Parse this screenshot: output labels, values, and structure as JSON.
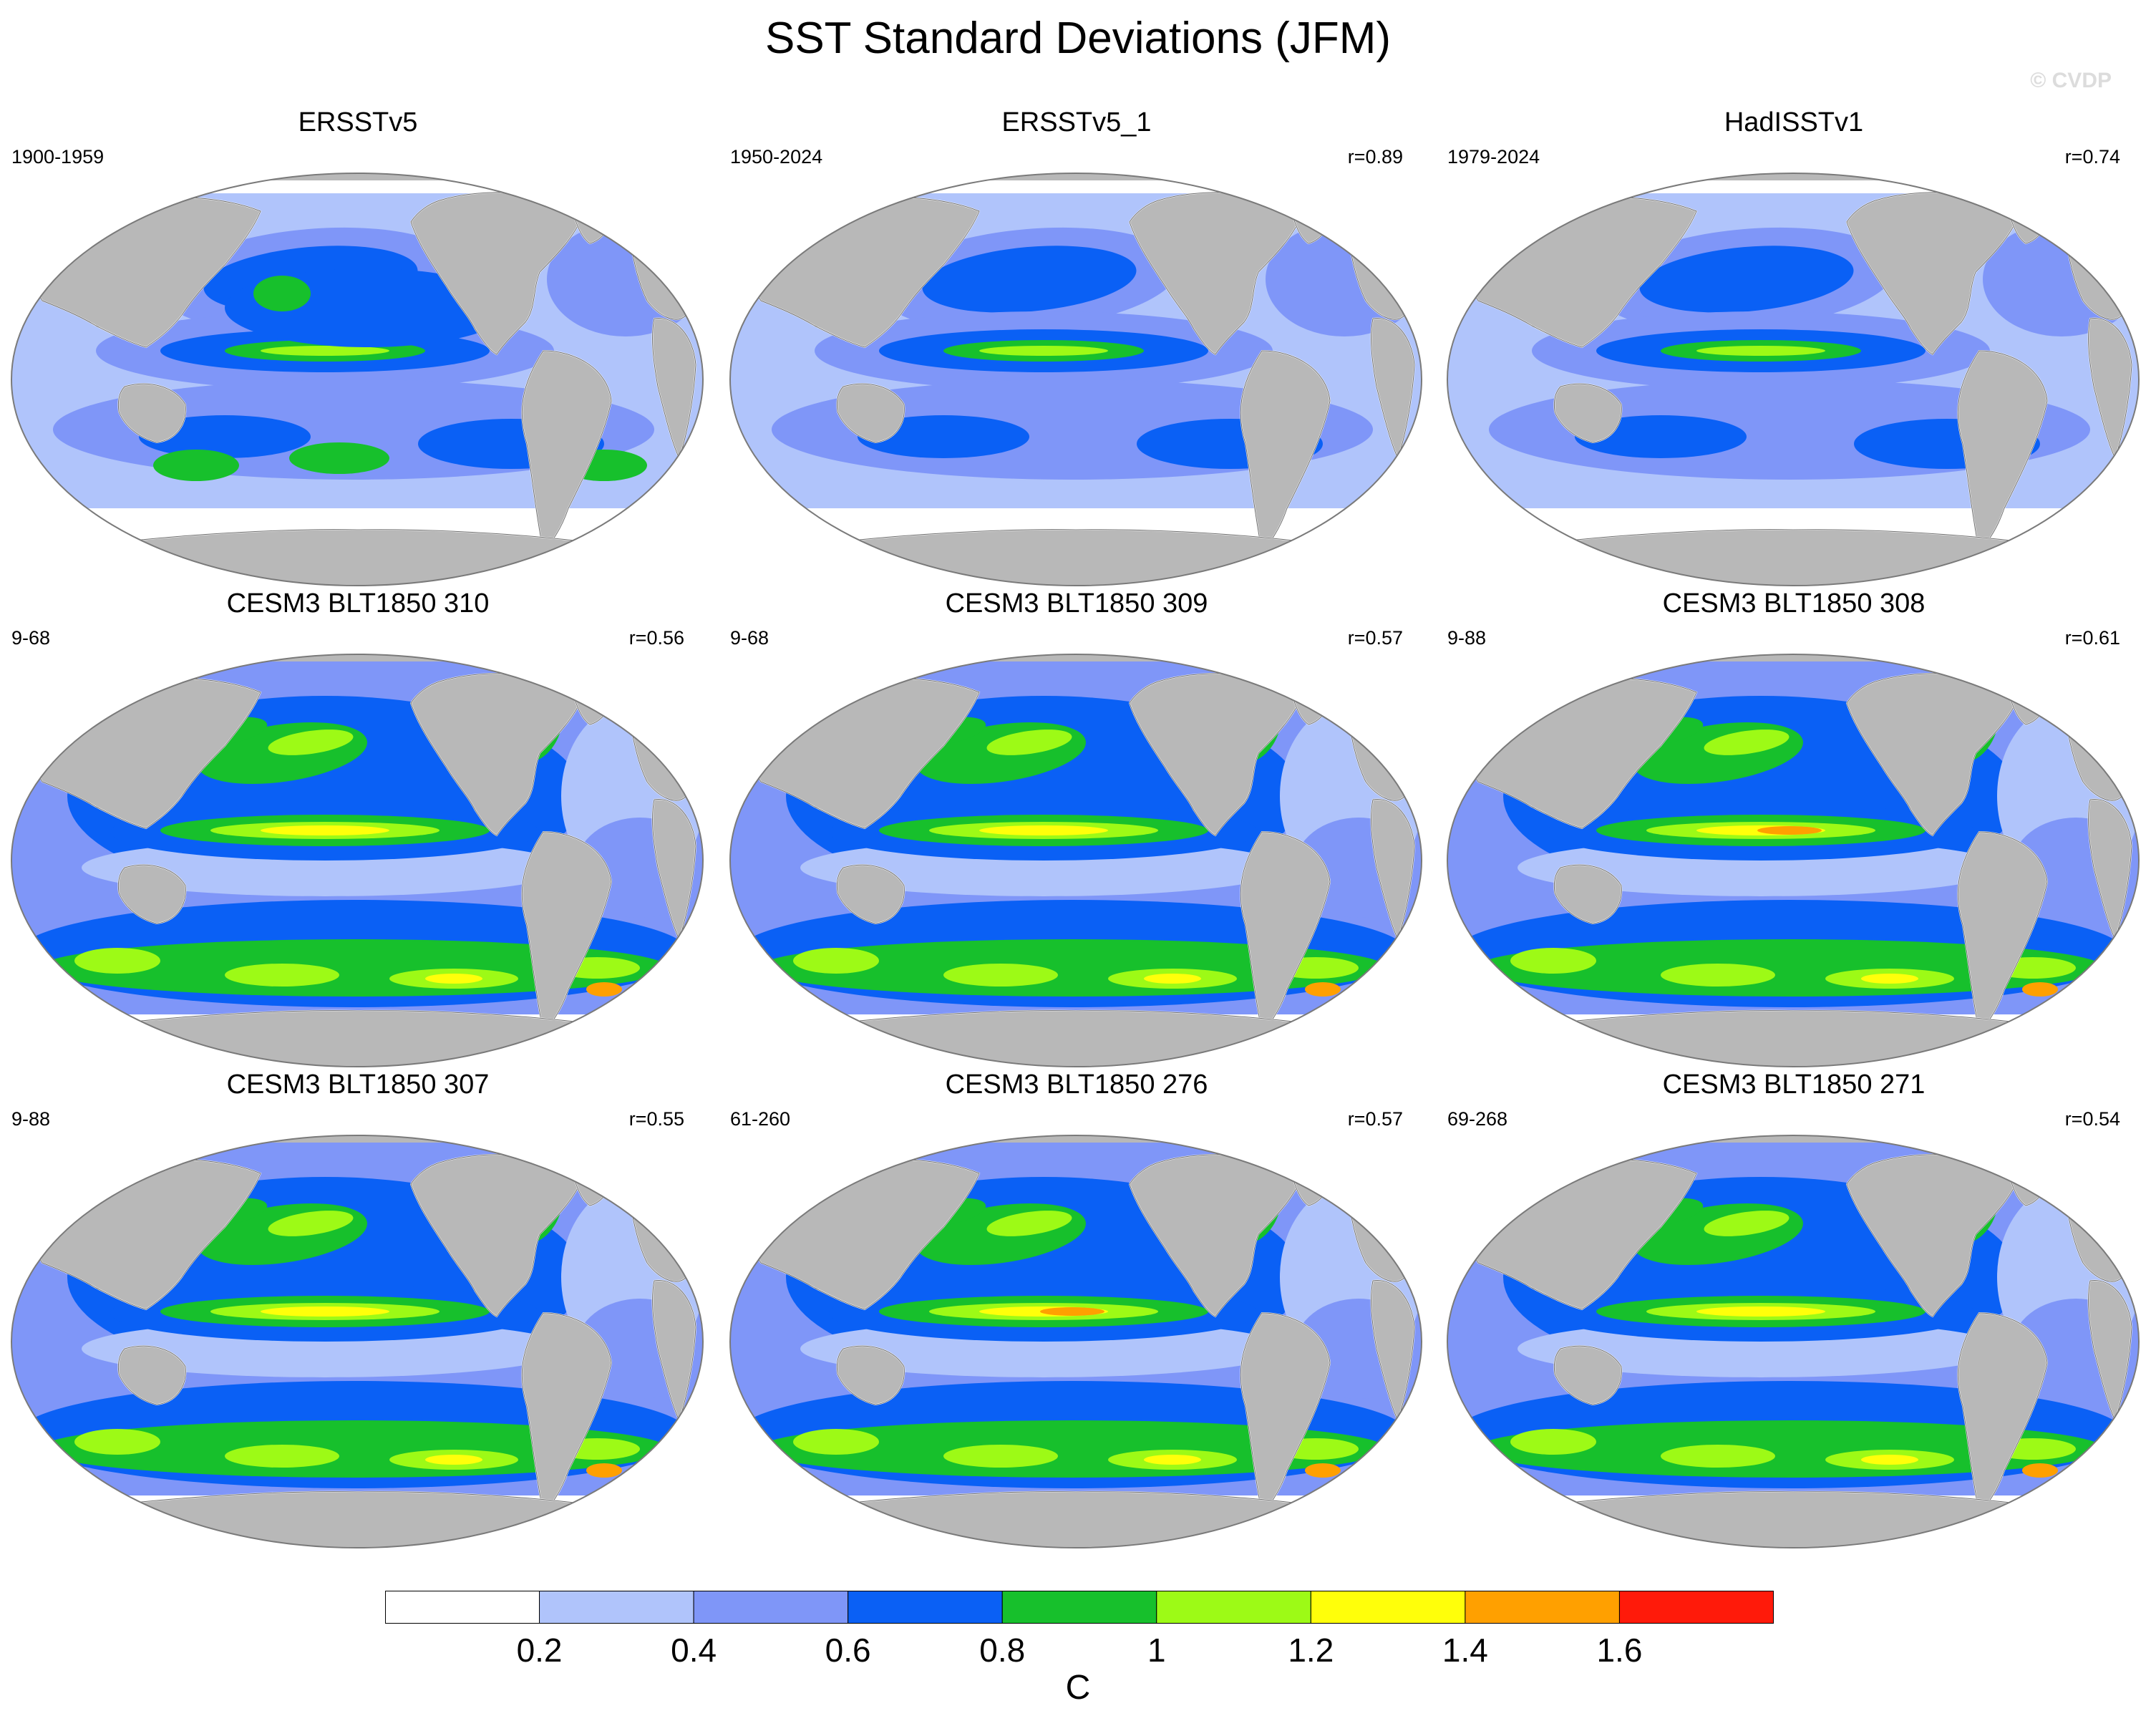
{
  "title": "SST Standard Deviations (JFM)",
  "watermark": "© CVDP",
  "colors": {
    "land": "#b8b8b8",
    "coast": "#707070",
    "levels": [
      "#ffffff",
      "#b0c4fb",
      "#7f96f8",
      "#0a60f5",
      "#17c02c",
      "#9dfa16",
      "#ffff0a",
      "#ffa000",
      "#ff1a0a"
    ]
  },
  "panels": [
    {
      "title": "ERSSTv5",
      "period": "1900-1959",
      "corr": ""
    },
    {
      "title": "ERSSTv5_1",
      "period": "1950-2024",
      "corr": "r=0.89"
    },
    {
      "title": "HadISSTv1",
      "period": "1979-2024",
      "corr": "r=0.74"
    },
    {
      "title": "CESM3 BLT1850 310",
      "period": "9-68",
      "corr": "r=0.56"
    },
    {
      "title": "CESM3 BLT1850 309",
      "period": "9-68",
      "corr": "r=0.57"
    },
    {
      "title": "CESM3 BLT1850 308",
      "period": "9-88",
      "corr": "r=0.61"
    },
    {
      "title": "CESM3 BLT1850 307",
      "period": "9-88",
      "corr": "r=0.55"
    },
    {
      "title": "CESM3 BLT1850 276",
      "period": "61-260",
      "corr": "r=0.57"
    },
    {
      "title": "CESM3 BLT1850 271",
      "period": "69-268",
      "corr": "r=0.54"
    }
  ],
  "colorbar": {
    "labels": [
      "0.2",
      "0.4",
      "0.6",
      "0.8",
      "1",
      "1.2",
      "1.4",
      "1.6"
    ],
    "unit": "C"
  }
}
